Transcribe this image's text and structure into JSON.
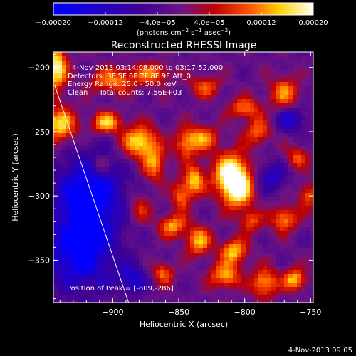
{
  "chart_data": {
    "type": "heatmap",
    "title": "Reconstructed RHESSI Image",
    "xlabel": "Heliocentric X (arcsec)",
    "ylabel": "Heliocentric Y (arcsec)",
    "xlim": [
      -945,
      -748
    ],
    "ylim": [
      -383,
      -188
    ],
    "x_ticks": [
      {
        "value": -900,
        "label": "−900"
      },
      {
        "value": -850,
        "label": "−850"
      },
      {
        "value": -800,
        "label": "−800"
      },
      {
        "value": -750,
        "label": "−750"
      }
    ],
    "y_ticks": [
      {
        "value": -200,
        "label": "−200"
      },
      {
        "value": -250,
        "label": "−250"
      },
      {
        "value": -300,
        "label": "−300"
      },
      {
        "value": -350,
        "label": "−350"
      }
    ],
    "colorbar": {
      "range": [
        -0.0002,
        0.0002
      ],
      "tick_values": [
        -0.0002,
        -0.00012,
        -4e-05,
        4e-05,
        0.00012,
        0.0002
      ],
      "tick_labels": [
        "−0.00020",
        "−0.00012",
        "−4.0e−05",
        "4.0e−05",
        "0.00012",
        "0.00020"
      ],
      "label_main": "(photons cm",
      "label_exp1": "−2",
      "label_mid": " s",
      "label_exp2": "−1",
      "label_end": " asec",
      "label_exp3": "−2",
      "label_close": ")"
    },
    "annotations": {
      "time_range": "4-Nov-2013 03:14:08.000 to 03:17:52.000",
      "detectors": "Detectors: 3F 5F 6F 7F 8F 9F Att_0",
      "energy_range": "Energy Range: 25.0 - 50.0 keV",
      "method": "Clean     Total counts: 7.56E+03",
      "peak": "Position of Peak = [-809,-286]"
    },
    "peak": {
      "x": -809,
      "y": -286
    },
    "limb_line": [
      {
        "x": -944,
        "y": -214
      },
      {
        "x": -888,
        "y": -383
      }
    ],
    "blobs": [
      {
        "x": -810,
        "y": -283,
        "amp": 1.0,
        "sx": 10,
        "sy": 12
      },
      {
        "x": -805,
        "y": -297,
        "amp": 0.7,
        "sx": 8,
        "sy": 10
      },
      {
        "x": -943,
        "y": -200,
        "amp": 0.95,
        "sx": 6,
        "sy": 12
      },
      {
        "x": -940,
        "y": -245,
        "amp": 0.8,
        "sx": 9,
        "sy": 10
      },
      {
        "x": -905,
        "y": -243,
        "amp": 0.75,
        "sx": 8,
        "sy": 6
      },
      {
        "x": -880,
        "y": -258,
        "amp": 0.85,
        "sx": 9,
        "sy": 9
      },
      {
        "x": -868,
        "y": -275,
        "amp": 0.6,
        "sx": 6,
        "sy": 10
      },
      {
        "x": -900,
        "y": -210,
        "amp": 0.6,
        "sx": 12,
        "sy": 7
      },
      {
        "x": -870,
        "y": -205,
        "amp": 0.55,
        "sx": 10,
        "sy": 6
      },
      {
        "x": -845,
        "y": -260,
        "amp": 0.55,
        "sx": 6,
        "sy": 9
      },
      {
        "x": -838,
        "y": -288,
        "amp": 0.75,
        "sx": 5,
        "sy": 8
      },
      {
        "x": -848,
        "y": -300,
        "amp": 0.6,
        "sx": 5,
        "sy": 8
      },
      {
        "x": -832,
        "y": -255,
        "amp": 0.6,
        "sx": 8,
        "sy": 7
      },
      {
        "x": -800,
        "y": -232,
        "amp": 0.55,
        "sx": 9,
        "sy": 6
      },
      {
        "x": -770,
        "y": -220,
        "amp": 0.6,
        "sx": 8,
        "sy": 9
      },
      {
        "x": -790,
        "y": -250,
        "amp": 0.55,
        "sx": 7,
        "sy": 7
      },
      {
        "x": -855,
        "y": -323,
        "amp": 0.7,
        "sx": 7,
        "sy": 6
      },
      {
        "x": -835,
        "y": -335,
        "amp": 0.7,
        "sx": 7,
        "sy": 8
      },
      {
        "x": -808,
        "y": -343,
        "amp": 0.75,
        "sx": 7,
        "sy": 7
      },
      {
        "x": -815,
        "y": -362,
        "amp": 0.7,
        "sx": 8,
        "sy": 7
      },
      {
        "x": -785,
        "y": -368,
        "amp": 0.7,
        "sx": 7,
        "sy": 8
      },
      {
        "x": -762,
        "y": -365,
        "amp": 0.75,
        "sx": 6,
        "sy": 6
      },
      {
        "x": -770,
        "y": -318,
        "amp": 0.65,
        "sx": 7,
        "sy": 7
      },
      {
        "x": -752,
        "y": -300,
        "amp": 0.55,
        "sx": 5,
        "sy": 7
      },
      {
        "x": -862,
        "y": -360,
        "amp": 0.55,
        "sx": 6,
        "sy": 6
      },
      {
        "x": -880,
        "y": -310,
        "amp": 0.45,
        "sx": 6,
        "sy": 8
      },
      {
        "x": -830,
        "y": -215,
        "amp": 0.5,
        "sx": 8,
        "sy": 6
      },
      {
        "x": -910,
        "y": -276,
        "amp": 0.45,
        "sx": 5,
        "sy": 5
      },
      {
        "x": -760,
        "y": -270,
        "amp": 0.5,
        "sx": 6,
        "sy": 6
      },
      {
        "x": -795,
        "y": -320,
        "amp": 0.5,
        "sx": 6,
        "sy": 6
      },
      {
        "x": -918,
        "y": -300,
        "amp": -0.9,
        "sx": 18,
        "sy": 22
      },
      {
        "x": -925,
        "y": -345,
        "amp": -0.8,
        "sx": 18,
        "sy": 20
      },
      {
        "x": -765,
        "y": -240,
        "amp": -0.55,
        "sx": 8,
        "sy": 7
      },
      {
        "x": -780,
        "y": -285,
        "amp": -0.5,
        "sx": 8,
        "sy": 8
      },
      {
        "x": -885,
        "y": -365,
        "amp": -0.55,
        "sx": 8,
        "sy": 8
      }
    ],
    "grid": false
  },
  "footer_timestamp": "4-Nov-2013 09:05"
}
